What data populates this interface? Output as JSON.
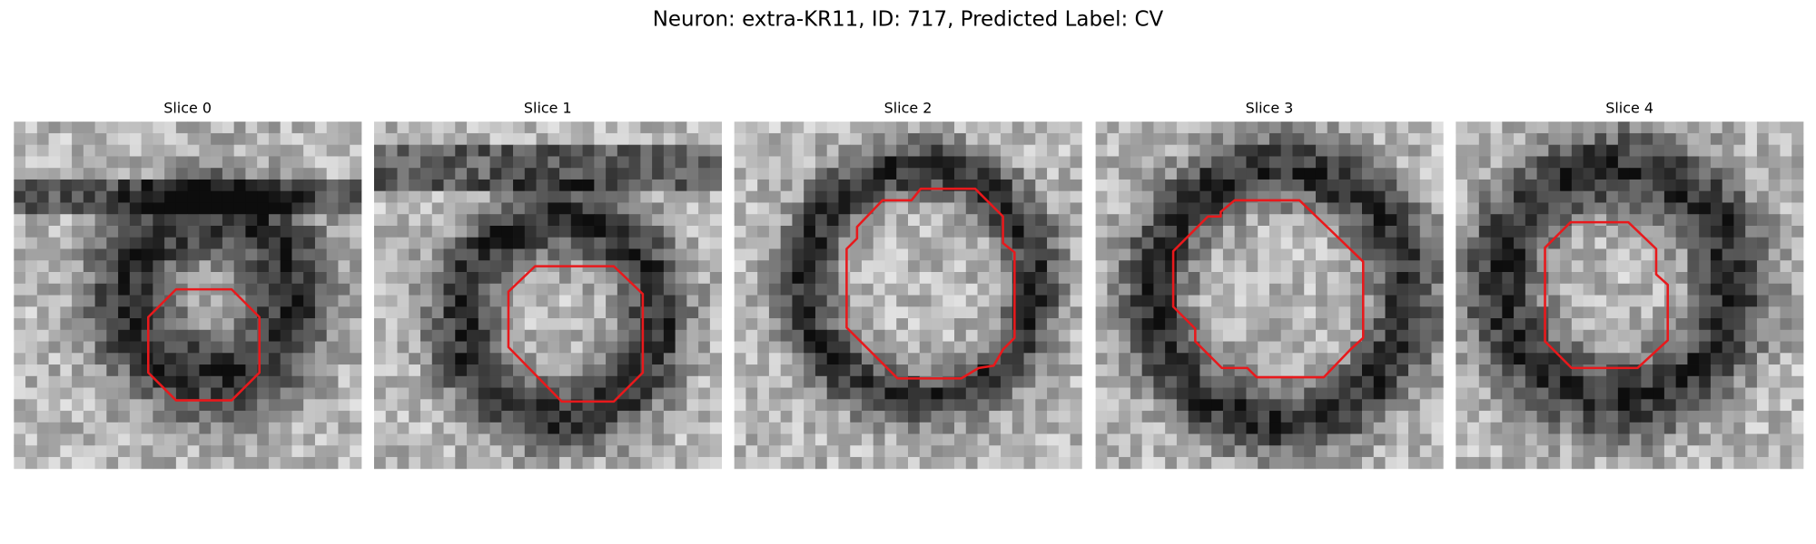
{
  "title": "Neuron: extra-KR11, ID: 717, Predicted Label: CV",
  "panels": [
    {
      "title": "Slice 0"
    },
    {
      "title": "Slice 1"
    },
    {
      "title": "Slice 2"
    },
    {
      "title": "Slice 3"
    },
    {
      "title": "Slice 4"
    }
  ]
}
